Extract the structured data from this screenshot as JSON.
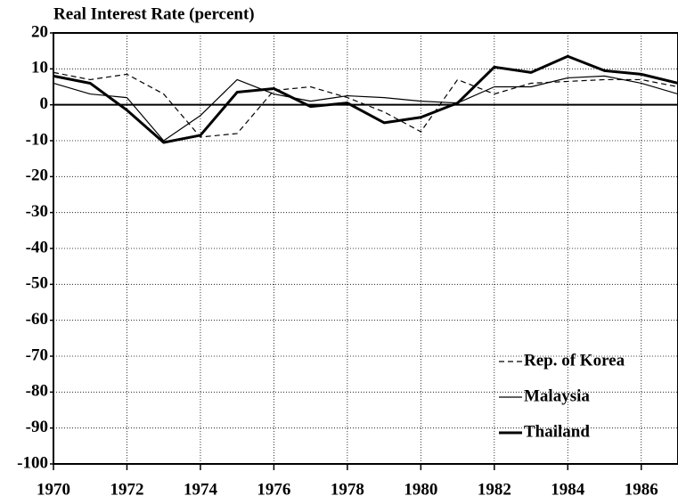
{
  "chart_data": {
    "type": "line",
    "title": "Real Interest Rate (percent)",
    "x": [
      1970,
      1971,
      1972,
      1973,
      1974,
      1975,
      1976,
      1977,
      1978,
      1979,
      1980,
      1981,
      1982,
      1983,
      1984,
      1985,
      1986,
      1987
    ],
    "series": [
      {
        "name": "Rep. of Korea",
        "color": "#000000",
        "dash": true,
        "width": 1.2,
        "values": [
          9,
          7,
          8.5,
          3,
          -9,
          -8,
          4,
          5,
          2,
          -2,
          -7.5,
          7,
          3,
          6,
          6.5,
          7,
          7,
          5
        ]
      },
      {
        "name": "Malaysia",
        "color": "#000000",
        "dash": false,
        "width": 1.2,
        "values": [
          6,
          3,
          2,
          -10,
          -3,
          7,
          3,
          1,
          2.5,
          2,
          1,
          0.5,
          5,
          5,
          7.5,
          8,
          6,
          3
        ]
      },
      {
        "name": "Thailand",
        "color": "#000000",
        "dash": false,
        "width": 3,
        "values": [
          8,
          6,
          -1.5,
          -10.5,
          -8.5,
          3.5,
          4.5,
          -0.5,
          0.5,
          -5,
          -3.5,
          0.5,
          10.5,
          9,
          13.5,
          9.5,
          8.5,
          6
        ]
      }
    ],
    "xlim": [
      1970,
      1987
    ],
    "xticks": [
      1970,
      1972,
      1974,
      1976,
      1978,
      1980,
      1982,
      1984,
      1986
    ],
    "ylim": [
      -100,
      20
    ],
    "yticks": [
      -100,
      -90,
      -80,
      -70,
      -60,
      -50,
      -40,
      -30,
      -20,
      -10,
      0,
      10,
      20
    ],
    "grid": true,
    "legend": "lower right"
  }
}
